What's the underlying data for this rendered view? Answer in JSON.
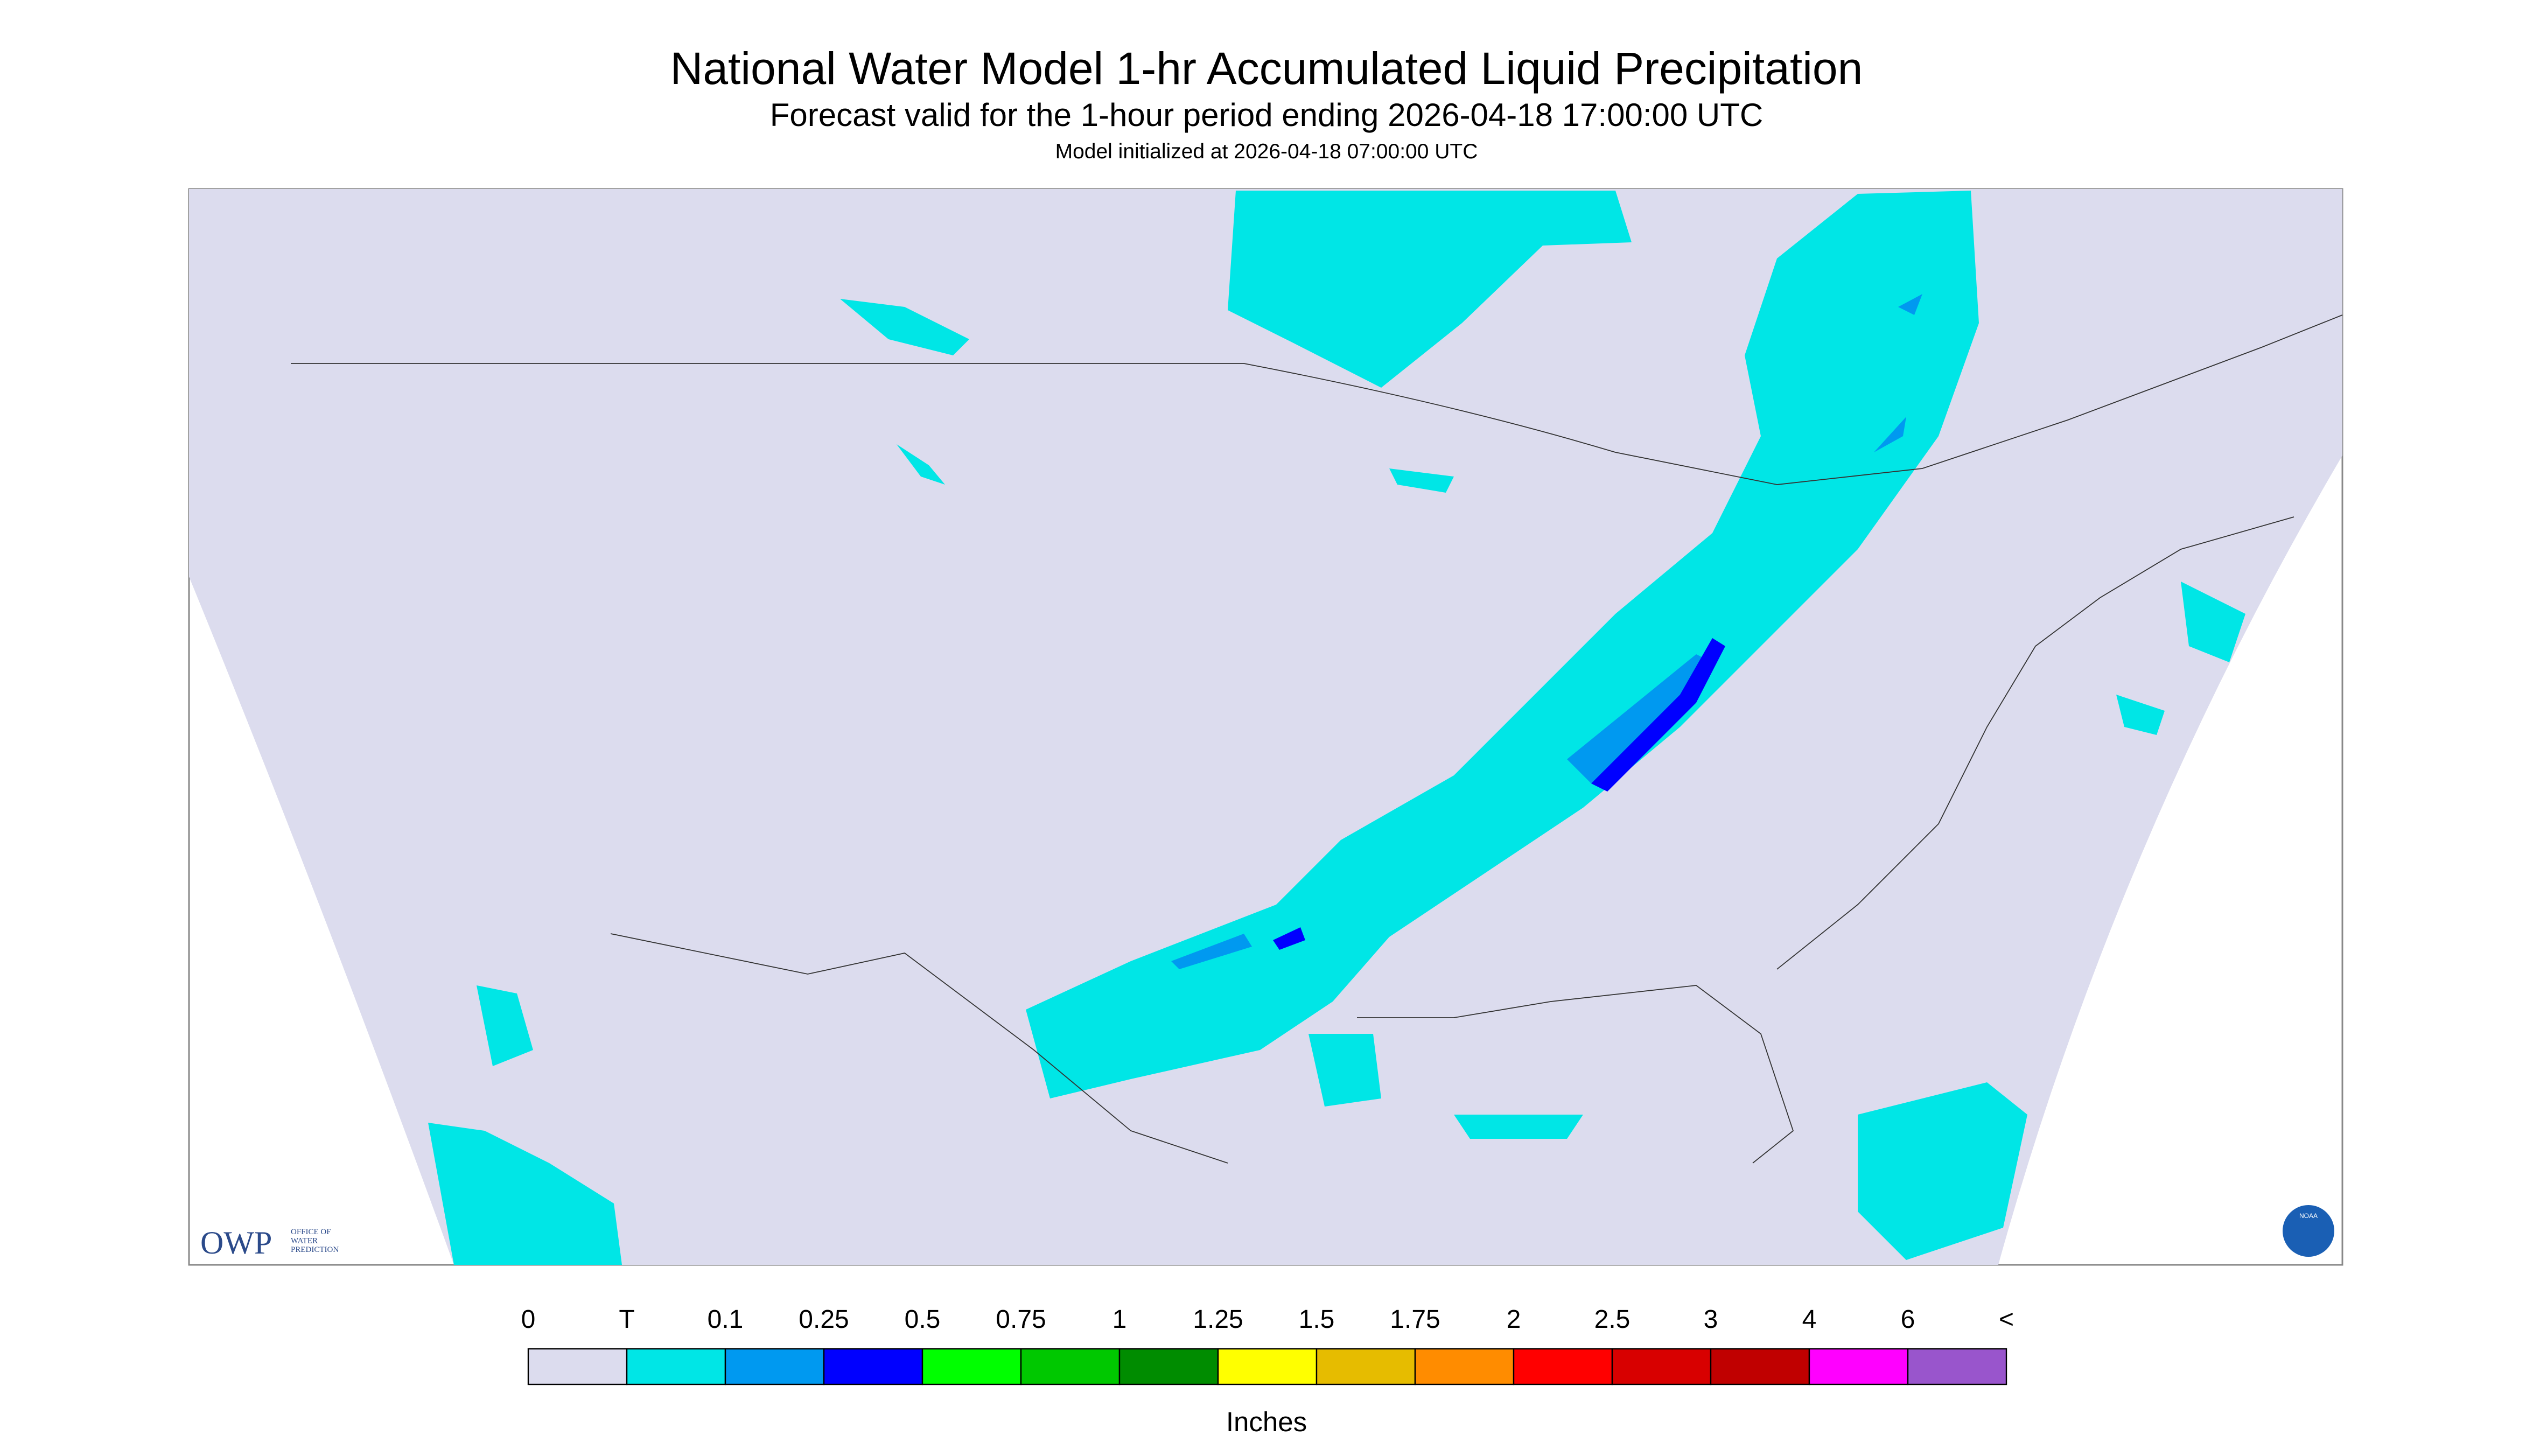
{
  "header": {
    "title": "National Water Model 1-hr Accumulated Liquid Precipitation",
    "subtitle": "Forecast valid for the 1-hour period ending 2026-04-18 17:00:00 UTC",
    "init": "Model initialized at 2026-04-18 07:00:00 UTC"
  },
  "legend": {
    "labels": [
      "0",
      "T",
      "0.1",
      "0.25",
      "0.5",
      "0.75",
      "1",
      "1.25",
      "1.5",
      "1.75",
      "2",
      "2.5",
      "3",
      "4",
      "6",
      "<"
    ],
    "colors": [
      "#dcdcee",
      "#00e6e6",
      "#0099f0",
      "#0000ff",
      "#00ff00",
      "#00c800",
      "#008c00",
      "#ffff00",
      "#e6bc00",
      "#ff8c00",
      "#ff0000",
      "#d80000",
      "#c00000",
      "#ff00ff",
      "#9955cc"
    ],
    "unit": "Inches"
  },
  "logo": {
    "name": "OWP",
    "lines": [
      "OFFICE OF",
      "WATER",
      "PREDICTION"
    ],
    "badge": "NOAA"
  }
}
